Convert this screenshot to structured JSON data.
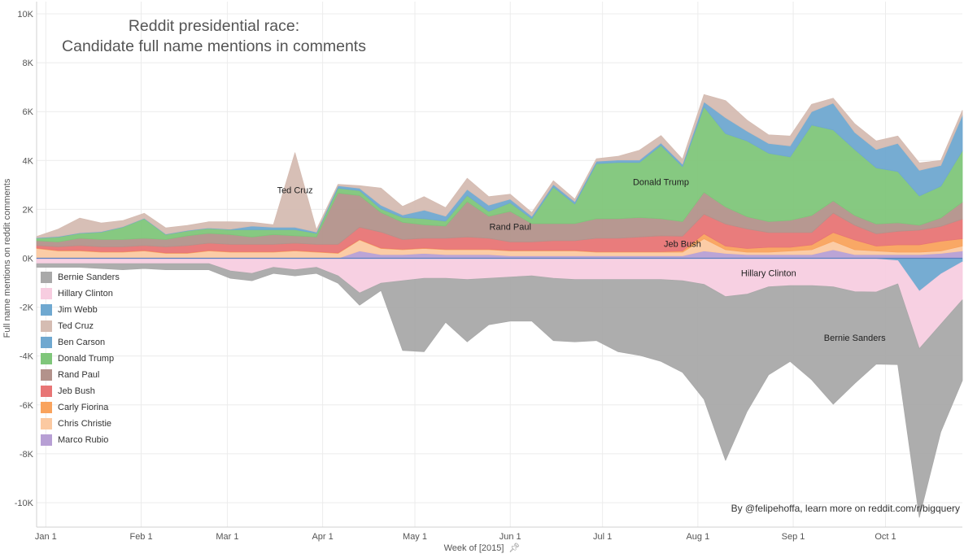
{
  "chart_data": {
    "type": "area",
    "title_lines": [
      "Reddit presidential race:",
      "Candidate full name mentions in comments"
    ],
    "xlabel": "Week of [2015]",
    "ylabel": "Full name mentions on reddit comments",
    "ylim": [
      -11000,
      10500
    ],
    "yticks": [
      -10000,
      -8000,
      -6000,
      -4000,
      -2000,
      0,
      2000,
      4000,
      6000,
      8000,
      10000
    ],
    "ytick_labels": [
      "-10K",
      "-8K",
      "-6K",
      "-4K",
      "-2K",
      "0K",
      "2K",
      "4K",
      "6K",
      "8K",
      "10K"
    ],
    "x_start": "2014-12-29",
    "x_end": "2015-10-26",
    "x_tick_labels": [
      {
        "date": "2015-01-01",
        "label": "Jan 1"
      },
      {
        "date": "2015-02-01",
        "label": "Feb 1"
      },
      {
        "date": "2015-03-01",
        "label": "Mar 1"
      },
      {
        "date": "2015-04-01",
        "label": "Apr 1"
      },
      {
        "date": "2015-05-01",
        "label": "May 1"
      },
      {
        "date": "2015-06-01",
        "label": "Jun 1"
      },
      {
        "date": "2015-07-01",
        "label": "Jul 1"
      },
      {
        "date": "2015-08-01",
        "label": "Aug 1"
      },
      {
        "date": "2015-09-01",
        "label": "Sep 1"
      },
      {
        "date": "2015-10-01",
        "label": "Oct 1"
      }
    ],
    "grid": true,
    "legend_position": "left",
    "x": [
      "2014-12-29",
      "2015-01-05",
      "2015-01-12",
      "2015-01-19",
      "2015-01-26",
      "2015-02-02",
      "2015-02-09",
      "2015-02-16",
      "2015-02-23",
      "2015-03-02",
      "2015-03-09",
      "2015-03-16",
      "2015-03-23",
      "2015-03-30",
      "2015-04-06",
      "2015-04-13",
      "2015-04-20",
      "2015-04-27",
      "2015-05-04",
      "2015-05-11",
      "2015-05-18",
      "2015-05-25",
      "2015-06-01",
      "2015-06-08",
      "2015-06-15",
      "2015-06-22",
      "2015-06-29",
      "2015-07-06",
      "2015-07-13",
      "2015-07-20",
      "2015-07-27",
      "2015-08-03",
      "2015-08-10",
      "2015-08-17",
      "2015-08-24",
      "2015-08-31",
      "2015-09-07",
      "2015-09-14",
      "2015-09-21",
      "2015-09-28",
      "2015-10-05",
      "2015-10-12",
      "2015-10-19",
      "2015-10-26"
    ],
    "series": [
      {
        "name": "Bernie Sanders",
        "color": "#a9a9a9",
        "side": "negative",
        "values": [
          -150,
          -150,
          -150,
          -200,
          -250,
          -200,
          -250,
          -250,
          -250,
          -300,
          -300,
          -250,
          -250,
          -250,
          -300,
          -500,
          -300,
          -2850,
          -3000,
          -1800,
          -2550,
          -1900,
          -1800,
          -1850,
          -2550,
          -2550,
          -2500,
          -2950,
          -3100,
          -3350,
          -3750,
          -4700,
          -6700,
          -4800,
          -3600,
          -3100,
          -3850,
          -4800,
          -3750,
          -2950,
          -3300,
          -6900,
          -4400,
          -3300
        ]
      },
      {
        "name": "Hillary Clinton",
        "color": "#f7cde0",
        "side": "negative",
        "values": [
          -200,
          -200,
          -200,
          -200,
          -200,
          -200,
          -200,
          -200,
          -200,
          -500,
          -600,
          -350,
          -450,
          -350,
          -700,
          -1400,
          -1000,
          -900,
          -800,
          -800,
          -850,
          -800,
          -750,
          -700,
          -800,
          -850,
          -850,
          -850,
          -850,
          -850,
          -900,
          -1050,
          -1550,
          -1450,
          -1150,
          -1100,
          -1100,
          -1150,
          -1350,
          -1350,
          -950,
          -2350,
          -2050,
          -1550
        ]
      },
      {
        "name": "Jim Webb",
        "color": "#6fa8d0",
        "side": "negative",
        "values": [
          -20,
          -20,
          -20,
          -20,
          -20,
          -20,
          -20,
          -20,
          -20,
          -20,
          -20,
          -20,
          -20,
          -20,
          -20,
          -20,
          -20,
          -20,
          -20,
          -20,
          -20,
          -20,
          -20,
          -20,
          -20,
          -20,
          -20,
          -20,
          -20,
          -20,
          -20,
          -20,
          -20,
          -20,
          -20,
          -20,
          -20,
          -20,
          -20,
          -30,
          -100,
          -1350,
          -650,
          -150
        ]
      },
      {
        "name": "Ted Cruz",
        "color": "#d5bcb2",
        "side": "positive",
        "values": [
          50,
          300,
          600,
          350,
          250,
          200,
          250,
          200,
          250,
          300,
          150,
          100,
          3050,
          100,
          50,
          100,
          700,
          350,
          550,
          350,
          450,
          350,
          200,
          150,
          150,
          100,
          100,
          150,
          400,
          300,
          200,
          300,
          700,
          450,
          350,
          400,
          300,
          200,
          350,
          350,
          300,
          300,
          200,
          200
        ]
      },
      {
        "name": "Ben Carson",
        "color": "#6fa8d0",
        "side": "positive",
        "values": [
          20,
          20,
          20,
          20,
          20,
          20,
          20,
          20,
          20,
          20,
          150,
          100,
          100,
          50,
          100,
          100,
          150,
          100,
          350,
          200,
          250,
          250,
          150,
          100,
          100,
          100,
          100,
          100,
          100,
          100,
          100,
          200,
          650,
          400,
          400,
          450,
          550,
          1100,
          700,
          750,
          1150,
          1050,
          850,
          1450
        ]
      },
      {
        "name": "Donald Trump",
        "color": "#7fc67a",
        "side": "positive",
        "values": [
          100,
          200,
          200,
          300,
          500,
          800,
          200,
          200,
          200,
          200,
          300,
          200,
          250,
          150,
          200,
          200,
          150,
          200,
          250,
          200,
          250,
          200,
          350,
          200,
          1500,
          800,
          2250,
          2300,
          2250,
          3000,
          2250,
          3500,
          3000,
          3100,
          2800,
          2600,
          3700,
          2900,
          2700,
          2300,
          2100,
          1200,
          1300,
          2100
        ]
      },
      {
        "name": "Rand Paul",
        "color": "#b3928b",
        "side": "positive",
        "values": [
          200,
          200,
          300,
          300,
          300,
          300,
          300,
          400,
          400,
          400,
          300,
          400,
          300,
          300,
          2100,
          1300,
          800,
          700,
          550,
          500,
          1450,
          900,
          1250,
          750,
          700,
          700,
          800,
          800,
          800,
          700,
          600,
          900,
          700,
          500,
          450,
          500,
          700,
          500,
          400,
          400,
          350,
          200,
          350,
          700
        ]
      },
      {
        "name": "Jeb Bush",
        "color": "#e87575",
        "side": "positive",
        "values": [
          100,
          150,
          200,
          200,
          200,
          200,
          250,
          300,
          300,
          300,
          300,
          300,
          300,
          300,
          350,
          500,
          650,
          400,
          400,
          450,
          500,
          450,
          350,
          350,
          400,
          400,
          550,
          550,
          600,
          650,
          600,
          800,
          900,
          800,
          600,
          600,
          500,
          800,
          600,
          500,
          550,
          600,
          600,
          800
        ]
      },
      {
        "name": "Carly Fiorina",
        "color": "#f9a35d",
        "side": "positive",
        "values": [
          20,
          20,
          20,
          20,
          20,
          20,
          20,
          20,
          20,
          20,
          20,
          20,
          20,
          20,
          20,
          20,
          20,
          20,
          20,
          20,
          20,
          20,
          20,
          20,
          20,
          20,
          20,
          20,
          20,
          20,
          50,
          200,
          150,
          150,
          200,
          150,
          200,
          350,
          400,
          200,
          300,
          300,
          400,
          300
        ]
      },
      {
        "name": "Chris Christie",
        "color": "#fbc9a1",
        "side": "positive",
        "values": [
          400,
          300,
          300,
          250,
          250,
          300,
          200,
          200,
          300,
          250,
          250,
          250,
          300,
          250,
          200,
          450,
          250,
          200,
          200,
          200,
          200,
          200,
          200,
          200,
          200,
          200,
          150,
          150,
          150,
          150,
          150,
          500,
          150,
          100,
          100,
          150,
          200,
          350,
          200,
          150,
          100,
          100,
          100,
          200
        ]
      },
      {
        "name": "Marco Rubio",
        "color": "#b79fd4",
        "side": "positive",
        "values": [
          0,
          0,
          0,
          0,
          0,
          0,
          0,
          0,
          0,
          0,
          0,
          0,
          0,
          0,
          0,
          300,
          150,
          150,
          200,
          150,
          150,
          150,
          100,
          100,
          100,
          100,
          100,
          100,
          100,
          100,
          100,
          300,
          200,
          150,
          150,
          150,
          150,
          350,
          150,
          150,
          150,
          150,
          200,
          300
        ]
      }
    ],
    "stack_order_positive_bottom_to_top": [
      "Marco Rubio",
      "Chris Christie",
      "Carly Fiorina",
      "Jeb Bush",
      "Rand Paul",
      "Donald Trump",
      "Ben Carson",
      "Ted Cruz"
    ],
    "stack_order_negative_top_to_bottom": [
      "Jim Webb",
      "Hillary Clinton",
      "Bernie Sanders"
    ],
    "annotations": [
      {
        "text": "Ted Cruz",
        "series": "Ted Cruz",
        "date": "2015-03-23"
      },
      {
        "text": "Rand Paul",
        "series": "Rand Paul",
        "date": "2015-06-01"
      },
      {
        "text": "Donald Trump",
        "series": "Donald Trump",
        "date": "2015-07-20"
      },
      {
        "text": "Jeb Bush",
        "series": "Jeb Bush",
        "date": "2015-07-27"
      },
      {
        "text": "Hillary Clinton",
        "series": "Hillary Clinton",
        "date": "2015-08-24"
      },
      {
        "text": "Bernie Sanders",
        "series": "Bernie Sanders",
        "date": "2015-09-21"
      }
    ]
  },
  "legend_items": [
    {
      "label": "Bernie Sanders",
      "color": "#a9a9a9"
    },
    {
      "label": "Hillary Clinton",
      "color": "#f7cde0"
    },
    {
      "label": "Jim Webb",
      "color": "#6fa8d0"
    },
    {
      "label": "Ted Cruz",
      "color": "#d5bcb2"
    },
    {
      "label": "Ben Carson",
      "color": "#6fa8d0"
    },
    {
      "label": "Donald Trump",
      "color": "#7fc67a"
    },
    {
      "label": "Rand Paul",
      "color": "#b3928b"
    },
    {
      "label": "Jeb Bush",
      "color": "#e87575"
    },
    {
      "label": "Carly Fiorina",
      "color": "#f9a35d"
    },
    {
      "label": "Chris Christie",
      "color": "#fbc9a1"
    },
    {
      "label": "Marco Rubio",
      "color": "#b79fd4"
    }
  ],
  "credit": "By @felipehoffa, learn more on reddit.com/r/bigquery",
  "pin_icon": "pushpin-icon"
}
